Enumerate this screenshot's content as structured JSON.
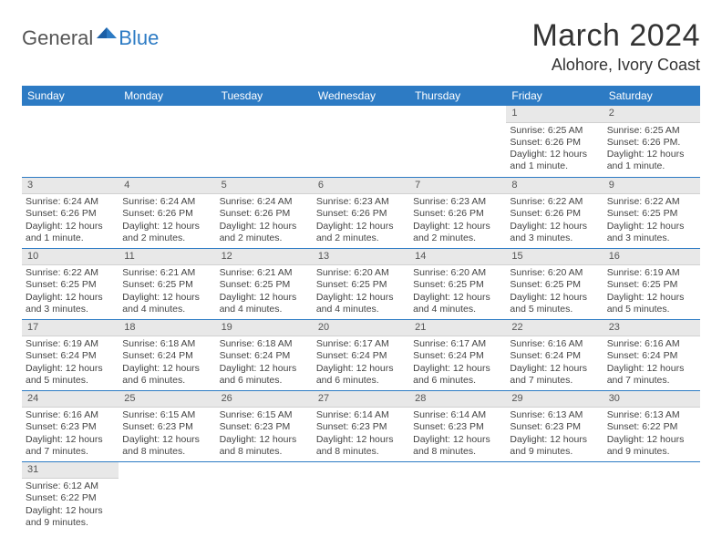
{
  "logo": {
    "text1": "General",
    "text2": "Blue"
  },
  "title": "March 2024",
  "location": "Alohore, Ivory Coast",
  "colors": {
    "header_bg": "#2d7bc4",
    "header_text": "#ffffff",
    "daynum_bg": "#e8e8e8",
    "row_border": "#2d7bc4",
    "logo_blue": "#2d7bc4",
    "logo_gray": "#555555"
  },
  "weekdays": [
    "Sunday",
    "Monday",
    "Tuesday",
    "Wednesday",
    "Thursday",
    "Friday",
    "Saturday"
  ],
  "weeks": [
    [
      null,
      null,
      null,
      null,
      null,
      {
        "n": "1",
        "sr": "Sunrise: 6:25 AM",
        "ss": "Sunset: 6:26 PM",
        "dl": "Daylight: 12 hours and 1 minute."
      },
      {
        "n": "2",
        "sr": "Sunrise: 6:25 AM",
        "ss": "Sunset: 6:26 PM.",
        "dl": "Daylight: 12 hours and 1 minute."
      }
    ],
    [
      {
        "n": "3",
        "sr": "Sunrise: 6:24 AM",
        "ss": "Sunset: 6:26 PM",
        "dl": "Daylight: 12 hours and 1 minute."
      },
      {
        "n": "4",
        "sr": "Sunrise: 6:24 AM",
        "ss": "Sunset: 6:26 PM",
        "dl": "Daylight: 12 hours and 2 minutes."
      },
      {
        "n": "5",
        "sr": "Sunrise: 6:24 AM",
        "ss": "Sunset: 6:26 PM",
        "dl": "Daylight: 12 hours and 2 minutes."
      },
      {
        "n": "6",
        "sr": "Sunrise: 6:23 AM",
        "ss": "Sunset: 6:26 PM",
        "dl": "Daylight: 12 hours and 2 minutes."
      },
      {
        "n": "7",
        "sr": "Sunrise: 6:23 AM",
        "ss": "Sunset: 6:26 PM",
        "dl": "Daylight: 12 hours and 2 minutes."
      },
      {
        "n": "8",
        "sr": "Sunrise: 6:22 AM",
        "ss": "Sunset: 6:26 PM",
        "dl": "Daylight: 12 hours and 3 minutes."
      },
      {
        "n": "9",
        "sr": "Sunrise: 6:22 AM",
        "ss": "Sunset: 6:25 PM",
        "dl": "Daylight: 12 hours and 3 minutes."
      }
    ],
    [
      {
        "n": "10",
        "sr": "Sunrise: 6:22 AM",
        "ss": "Sunset: 6:25 PM",
        "dl": "Daylight: 12 hours and 3 minutes."
      },
      {
        "n": "11",
        "sr": "Sunrise: 6:21 AM",
        "ss": "Sunset: 6:25 PM",
        "dl": "Daylight: 12 hours and 4 minutes."
      },
      {
        "n": "12",
        "sr": "Sunrise: 6:21 AM",
        "ss": "Sunset: 6:25 PM",
        "dl": "Daylight: 12 hours and 4 minutes."
      },
      {
        "n": "13",
        "sr": "Sunrise: 6:20 AM",
        "ss": "Sunset: 6:25 PM",
        "dl": "Daylight: 12 hours and 4 minutes."
      },
      {
        "n": "14",
        "sr": "Sunrise: 6:20 AM",
        "ss": "Sunset: 6:25 PM",
        "dl": "Daylight: 12 hours and 4 minutes."
      },
      {
        "n": "15",
        "sr": "Sunrise: 6:20 AM",
        "ss": "Sunset: 6:25 PM",
        "dl": "Daylight: 12 hours and 5 minutes."
      },
      {
        "n": "16",
        "sr": "Sunrise: 6:19 AM",
        "ss": "Sunset: 6:25 PM",
        "dl": "Daylight: 12 hours and 5 minutes."
      }
    ],
    [
      {
        "n": "17",
        "sr": "Sunrise: 6:19 AM",
        "ss": "Sunset: 6:24 PM",
        "dl": "Daylight: 12 hours and 5 minutes."
      },
      {
        "n": "18",
        "sr": "Sunrise: 6:18 AM",
        "ss": "Sunset: 6:24 PM",
        "dl": "Daylight: 12 hours and 6 minutes."
      },
      {
        "n": "19",
        "sr": "Sunrise: 6:18 AM",
        "ss": "Sunset: 6:24 PM",
        "dl": "Daylight: 12 hours and 6 minutes."
      },
      {
        "n": "20",
        "sr": "Sunrise: 6:17 AM",
        "ss": "Sunset: 6:24 PM",
        "dl": "Daylight: 12 hours and 6 minutes."
      },
      {
        "n": "21",
        "sr": "Sunrise: 6:17 AM",
        "ss": "Sunset: 6:24 PM",
        "dl": "Daylight: 12 hours and 6 minutes."
      },
      {
        "n": "22",
        "sr": "Sunrise: 6:16 AM",
        "ss": "Sunset: 6:24 PM",
        "dl": "Daylight: 12 hours and 7 minutes."
      },
      {
        "n": "23",
        "sr": "Sunrise: 6:16 AM",
        "ss": "Sunset: 6:24 PM",
        "dl": "Daylight: 12 hours and 7 minutes."
      }
    ],
    [
      {
        "n": "24",
        "sr": "Sunrise: 6:16 AM",
        "ss": "Sunset: 6:23 PM",
        "dl": "Daylight: 12 hours and 7 minutes."
      },
      {
        "n": "25",
        "sr": "Sunrise: 6:15 AM",
        "ss": "Sunset: 6:23 PM",
        "dl": "Daylight: 12 hours and 8 minutes."
      },
      {
        "n": "26",
        "sr": "Sunrise: 6:15 AM",
        "ss": "Sunset: 6:23 PM",
        "dl": "Daylight: 12 hours and 8 minutes."
      },
      {
        "n": "27",
        "sr": "Sunrise: 6:14 AM",
        "ss": "Sunset: 6:23 PM",
        "dl": "Daylight: 12 hours and 8 minutes."
      },
      {
        "n": "28",
        "sr": "Sunrise: 6:14 AM",
        "ss": "Sunset: 6:23 PM",
        "dl": "Daylight: 12 hours and 8 minutes."
      },
      {
        "n": "29",
        "sr": "Sunrise: 6:13 AM",
        "ss": "Sunset: 6:23 PM",
        "dl": "Daylight: 12 hours and 9 minutes."
      },
      {
        "n": "30",
        "sr": "Sunrise: 6:13 AM",
        "ss": "Sunset: 6:22 PM",
        "dl": "Daylight: 12 hours and 9 minutes."
      }
    ],
    [
      {
        "n": "31",
        "sr": "Sunrise: 6:12 AM",
        "ss": "Sunset: 6:22 PM",
        "dl": "Daylight: 12 hours and 9 minutes."
      },
      null,
      null,
      null,
      null,
      null,
      null
    ]
  ]
}
